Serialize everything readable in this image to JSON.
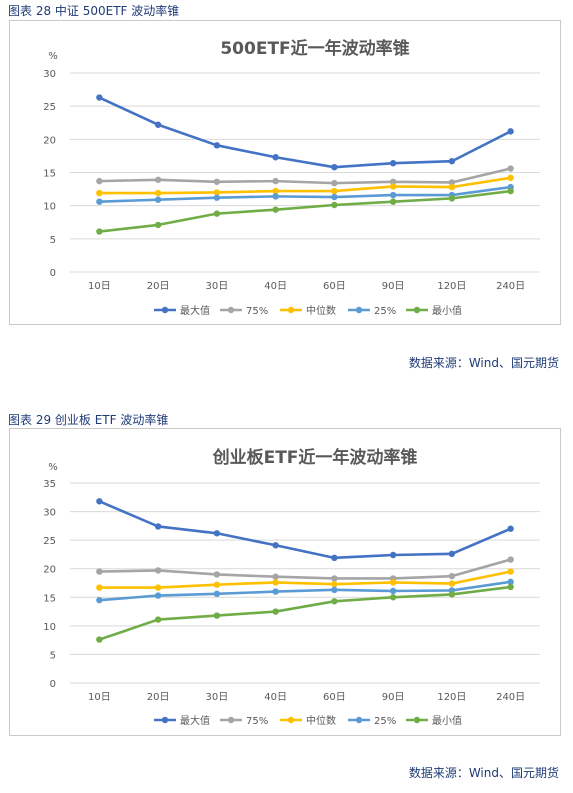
{
  "figures": [
    {
      "caption": "图表 28  中证 500ETF 波动率锥",
      "source": "数据来源：Wind、国元期货",
      "chart_data": {
        "type": "line",
        "title": "500ETF近一年波动率锥",
        "ylabel": "%",
        "xlabel": "",
        "categories": [
          "10日",
          "20日",
          "30日",
          "40日",
          "60日",
          "90日",
          "120日",
          "240日"
        ],
        "ylim": [
          0,
          30
        ],
        "yticks": [
          0,
          5,
          10,
          15,
          20,
          25,
          30
        ],
        "grid": true,
        "legend_position": "bottom",
        "series": [
          {
            "name": "最大值",
            "color": "#4472c4",
            "values": [
              26.3,
              22.2,
              19.1,
              17.3,
              15.8,
              16.4,
              16.7,
              21.2
            ]
          },
          {
            "name": "75%",
            "color": "#a5a5a5",
            "values": [
              13.7,
              13.9,
              13.6,
              13.7,
              13.4,
              13.6,
              13.5,
              15.6
            ]
          },
          {
            "name": "中位数",
            "color": "#ffc000",
            "values": [
              11.9,
              11.9,
              12.0,
              12.2,
              12.2,
              12.9,
              12.8,
              14.2
            ]
          },
          {
            "name": "25%",
            "color": "#5b9bd5",
            "values": [
              10.6,
              10.9,
              11.2,
              11.4,
              11.3,
              11.6,
              11.6,
              12.8
            ]
          },
          {
            "name": "最小值",
            "color": "#70ad47",
            "values": [
              6.1,
              7.1,
              8.8,
              9.4,
              10.1,
              10.6,
              11.1,
              12.2
            ]
          }
        ]
      }
    },
    {
      "caption": "图表 29  创业板 ETF 波动率锥",
      "source": "数据来源：Wind、国元期货",
      "chart_data": {
        "type": "line",
        "title": "创业板ETF近一年波动率锥",
        "ylabel": "%",
        "xlabel": "",
        "categories": [
          "10日",
          "20日",
          "30日",
          "40日",
          "60日",
          "90日",
          "120日",
          "240日"
        ],
        "ylim": [
          0,
          35
        ],
        "yticks": [
          0,
          5,
          10,
          15,
          20,
          25,
          30,
          35
        ],
        "grid": true,
        "legend_position": "bottom",
        "series": [
          {
            "name": "最大值",
            "color": "#4472c4",
            "values": [
              31.8,
              27.4,
              26.2,
              24.1,
              21.9,
              22.4,
              22.6,
              27.0
            ]
          },
          {
            "name": "75%",
            "color": "#a5a5a5",
            "values": [
              19.5,
              19.7,
              19.0,
              18.6,
              18.3,
              18.3,
              18.7,
              21.6
            ]
          },
          {
            "name": "中位数",
            "color": "#ffc000",
            "values": [
              16.7,
              16.7,
              17.2,
              17.6,
              17.3,
              17.6,
              17.4,
              19.5
            ]
          },
          {
            "name": "25%",
            "color": "#5b9bd5",
            "values": [
              14.5,
              15.3,
              15.6,
              16.0,
              16.3,
              16.1,
              16.2,
              17.7
            ]
          },
          {
            "name": "最小值",
            "color": "#70ad47",
            "values": [
              7.6,
              11.1,
              11.8,
              12.5,
              14.3,
              15.0,
              15.5,
              16.8
            ]
          }
        ]
      }
    }
  ]
}
